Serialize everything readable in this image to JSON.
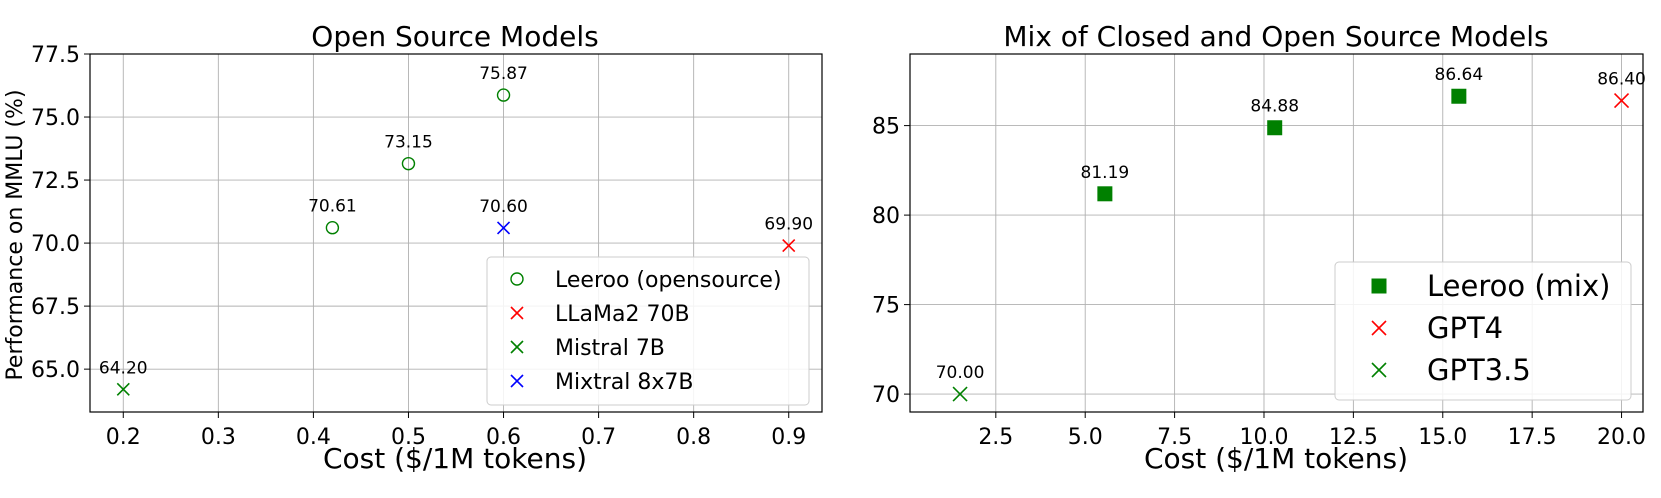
{
  "chart_data": [
    {
      "type": "scatter",
      "title": "Open Source Models",
      "xlabel": "Cost ($/1M tokens)",
      "ylabel": "Performance on MMLU (%)",
      "xlim": [
        0.165,
        0.935
      ],
      "ylim": [
        63.3,
        77.5
      ],
      "xticks": [
        "0.2",
        "0.3",
        "0.4",
        "0.5",
        "0.6",
        "0.7",
        "0.8",
        "0.9"
      ],
      "yticks": [
        "65.0",
        "67.5",
        "70.0",
        "72.5",
        "75.0",
        "77.5"
      ],
      "grid": true,
      "legend_position": "lower-right",
      "series": [
        {
          "name": "Leeroo (opensource)",
          "marker": "circle-open",
          "color": "#008000",
          "points": [
            {
              "x": 0.42,
              "y": 70.61,
              "label": "70.61"
            },
            {
              "x": 0.5,
              "y": 73.15,
              "label": "73.15"
            },
            {
              "x": 0.6,
              "y": 75.87,
              "label": "75.87"
            }
          ]
        },
        {
          "name": "LLaMa2 70B",
          "marker": "x",
          "color": "#ff0000",
          "points": [
            {
              "x": 0.9,
              "y": 69.9,
              "label": "69.90"
            }
          ]
        },
        {
          "name": "Mistral 7B",
          "marker": "x",
          "color": "#008000",
          "points": [
            {
              "x": 0.2,
              "y": 64.2,
              "label": "64.20"
            }
          ]
        },
        {
          "name": "Mixtral 8x7B",
          "marker": "x",
          "color": "#0000ff",
          "points": [
            {
              "x": 0.6,
              "y": 70.6,
              "label": "70.60"
            }
          ]
        }
      ]
    },
    {
      "type": "scatter",
      "title": "Mix of Closed and Open Source Models",
      "xlabel": "Cost ($/1M tokens)",
      "ylabel": "",
      "xlim": [
        0.1,
        20.6
      ],
      "ylim": [
        69,
        89
      ],
      "xticks": [
        "2.5",
        "5.0",
        "7.5",
        "10.0",
        "12.5",
        "15.0",
        "17.5",
        "20.0"
      ],
      "yticks": [
        "70",
        "75",
        "80",
        "85"
      ],
      "grid": true,
      "legend_position": "lower-right",
      "series": [
        {
          "name": "Leeroo (mix)",
          "marker": "square",
          "color": "#008000",
          "points": [
            {
              "x": 5.55,
              "y": 81.19,
              "label": "81.19"
            },
            {
              "x": 10.3,
              "y": 84.88,
              "label": "84.88"
            },
            {
              "x": 15.45,
              "y": 86.64,
              "label": "86.64"
            }
          ]
        },
        {
          "name": "GPT4",
          "marker": "x",
          "color": "#ff0000",
          "points": [
            {
              "x": 20.0,
              "y": 86.4,
              "label": "86.40"
            }
          ]
        },
        {
          "name": "GPT3.5",
          "marker": "x",
          "color": "#008000",
          "points": [
            {
              "x": 1.5,
              "y": 70.0,
              "label": "70.00"
            }
          ]
        }
      ]
    }
  ]
}
